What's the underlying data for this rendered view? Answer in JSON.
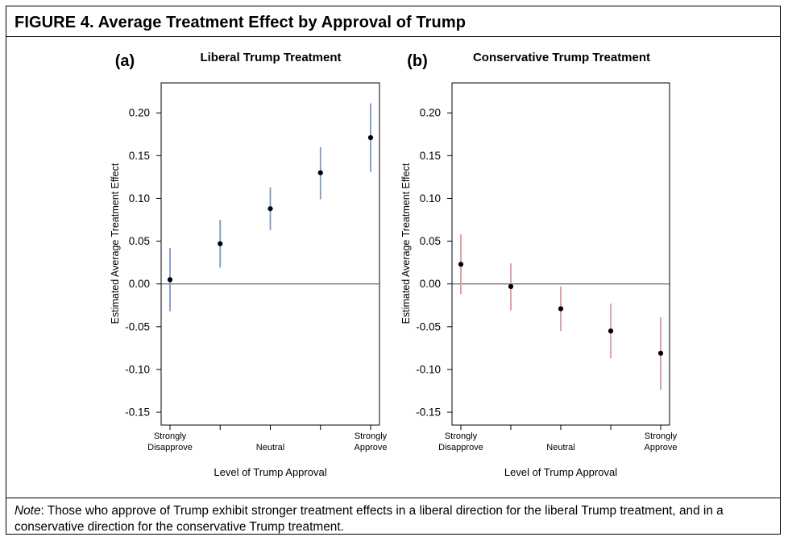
{
  "figure": {
    "title": "FIGURE 4.   Average Treatment Effect by Approval of Trump",
    "note_lead": "Note",
    "note_text": ": Those who approve of Trump exhibit stronger treatment effects in a liberal direction for the liberal Trump treatment, and in a conservative direction for the conservative Trump treatment."
  },
  "chart_data": [
    {
      "type": "scatter",
      "panel_label": "(a)",
      "title": "Liberal Trump Treatment",
      "xlabel": "Level of Trump Approval",
      "ylabel": "Estimated Average Treatment Effect",
      "ylim": [
        -0.165,
        0.235
      ],
      "yticks": [
        "0.20",
        "0.15",
        "0.10",
        "0.05",
        "0.00",
        "-0.05",
        "-0.10",
        "-0.15"
      ],
      "categories": [
        {
          "line1": "Strongly",
          "line2": "Disapprove"
        },
        {
          "line1": "",
          "line2": ""
        },
        {
          "line1": "Neutral",
          "line2": ""
        },
        {
          "line1": "",
          "line2": ""
        },
        {
          "line1": "Strongly",
          "line2": "Approve"
        }
      ],
      "points": [
        {
          "x": 1,
          "estimate": 0.005,
          "lower": -0.032,
          "upper": 0.042
        },
        {
          "x": 2,
          "estimate": 0.047,
          "lower": 0.019,
          "upper": 0.075
        },
        {
          "x": 3,
          "estimate": 0.088,
          "lower": 0.063,
          "upper": 0.113
        },
        {
          "x": 4,
          "estimate": 0.13,
          "lower": 0.099,
          "upper": 0.16
        },
        {
          "x": 5,
          "estimate": 0.171,
          "lower": 0.131,
          "upper": 0.211
        }
      ],
      "reference_line": 0,
      "ci_color": "#7f97c6",
      "point_color": "#000000",
      "grid": false
    },
    {
      "type": "scatter",
      "panel_label": "(b)",
      "title": "Conservative Trump Treatment",
      "xlabel": "Level of Trump Approval",
      "ylabel": "Estimated Average Treatment Effect",
      "ylim": [
        -0.165,
        0.235
      ],
      "yticks": [
        "0.20",
        "0.15",
        "0.10",
        "0.05",
        "0.00",
        "-0.05",
        "-0.10",
        "-0.15"
      ],
      "categories": [
        {
          "line1": "Strongly",
          "line2": "Disapprove"
        },
        {
          "line1": "",
          "line2": ""
        },
        {
          "line1": "Neutral",
          "line2": ""
        },
        {
          "line1": "",
          "line2": ""
        },
        {
          "line1": "Strongly",
          "line2": "Approve"
        }
      ],
      "points": [
        {
          "x": 1,
          "estimate": 0.023,
          "lower": -0.012,
          "upper": 0.058
        },
        {
          "x": 2,
          "estimate": -0.003,
          "lower": -0.031,
          "upper": 0.024
        },
        {
          "x": 3,
          "estimate": -0.029,
          "lower": -0.055,
          "upper": -0.003
        },
        {
          "x": 4,
          "estimate": -0.055,
          "lower": -0.087,
          "upper": -0.023
        },
        {
          "x": 5,
          "estimate": -0.081,
          "lower": -0.124,
          "upper": -0.039
        }
      ],
      "reference_line": 0,
      "ci_color": "#d99a9a",
      "point_color": "#000000",
      "grid": false
    }
  ]
}
